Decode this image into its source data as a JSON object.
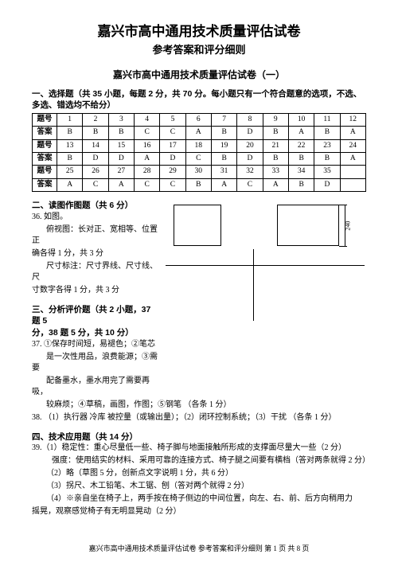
{
  "title": "嘉兴市高中通用技术质量评估试卷",
  "subtitle1": "参考答案和评分细则",
  "paper_label": "嘉兴市高中通用技术质量评估试卷（一）",
  "section1": {
    "head": "一、选择题（共 35 小题，每题 2 分，共 70 分。每小题只有一个符合题意的选项，不选、多选、错选均不给分）",
    "rows": [
      {
        "h": "题号",
        "c": [
          "1",
          "2",
          "3",
          "4",
          "5",
          "6",
          "7",
          "8",
          "9",
          "10",
          "11",
          "12"
        ]
      },
      {
        "h": "答案",
        "c": [
          "B",
          "B",
          "B",
          "C",
          "C",
          "A",
          "B",
          "D",
          "B",
          "A",
          "B",
          "A"
        ]
      },
      {
        "h": "题号",
        "c": [
          "13",
          "14",
          "15",
          "16",
          "17",
          "18",
          "19",
          "20",
          "21",
          "22",
          "23",
          "24"
        ]
      },
      {
        "h": "答案",
        "c": [
          "B",
          "D",
          "D",
          "A",
          "D",
          "C",
          "B",
          "D",
          "B",
          "B",
          "B",
          "A"
        ]
      },
      {
        "h": "题号",
        "c": [
          "25",
          "26",
          "27",
          "28",
          "29",
          "30",
          "31",
          "32",
          "33",
          "34",
          "35",
          ""
        ]
      },
      {
        "h": "答案",
        "c": [
          "A",
          "C",
          "A",
          "C",
          "C",
          "B",
          "A",
          "C",
          "A",
          "B",
          "D",
          ""
        ]
      }
    ]
  },
  "section2": {
    "head": "二、读图作图题（共 6 分）",
    "q36": "36. 如图。",
    "l1": "俯视图：长对正、宽相等、位置正",
    "l2": "确各得 1 分，共 3 分",
    "l3": "尺寸标注：尺寸界线、尺寸线、尺",
    "l4": "寸数字各得 1 分，共 3 分",
    "dim": "240"
  },
  "section3": {
    "head": "三、分析评价题（共 2 小题，37 题 5",
    "head2": "分，38 题 5 分，共 10 分）",
    "q37_a": "37.  ①保存时间短，易褪色；②笔芯",
    "q37_b": "是一次性用品，浪费能源；③需要",
    "q37_c": "配备墨水，墨水用完了需要再吸，",
    "q37_d": "较麻烦；④草稿，画图，作图；⑤钢笔      （各条 1 分）",
    "q38": "38. （1）执行器    冷库    被控量（或输出量）；（2）闭环控制系统；（3）干扰   （各条 1 分）"
  },
  "section4": {
    "head": "四、技术应用题（共 14 分）",
    "q39_1": "39.（1）稳定性：重心尽量低一些、椅子脚与地面接触所形成的支撑面尽量大一些（2 分）",
    "q39_1b": "强度：使用结实的材料、采用可靠的连接方式、椅子腿之间要有横档（答对两条就得 2 分）",
    "q39_2": "（2）略（草图 5 分，创新点文字说明 1 分，共 6 分）",
    "q39_3": "（3）拐尺、木工铅笔、木工锯、刨（答对两个就得 2 分）",
    "q39_4": "（4）※亲自坐在椅子上，两手按在椅子侧边的中间位置，向左、右、前、后方向稍用力",
    "q39_4b": "摇晃，观察感觉椅子有无明显晃动（2 分）"
  },
  "footer": "嘉兴市高中通用技术质量评估试卷    参考答案和评分细则    第 1 页  共 8 页",
  "colors": {
    "text": "#000000",
    "bg": "#ffffff"
  }
}
